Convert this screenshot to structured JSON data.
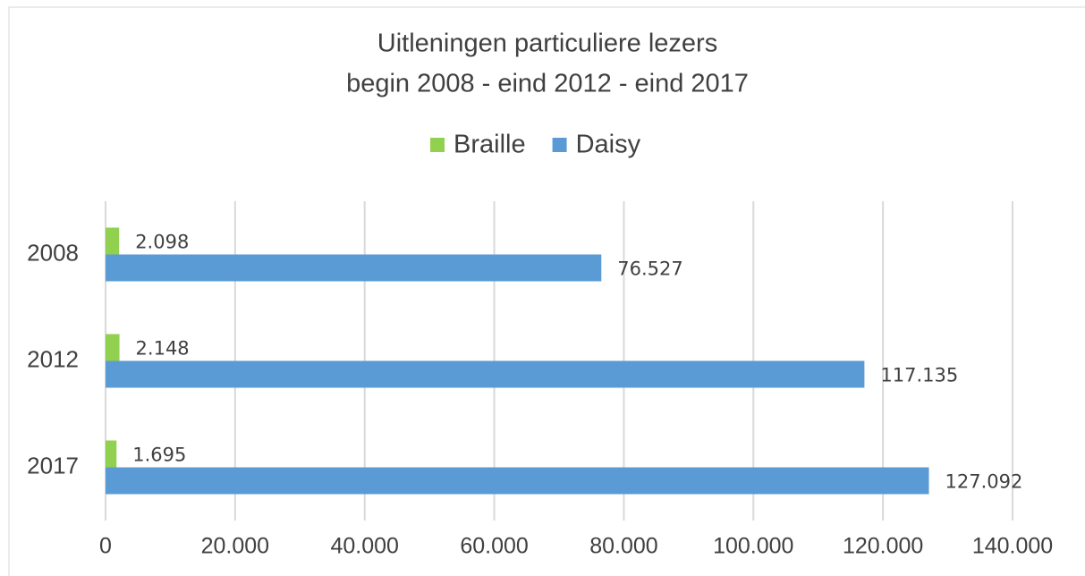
{
  "chart_data": {
    "type": "hbar",
    "title": "Uitleningen particuliere lezers",
    "subtitle": "begin 2008 - eind 2012 - eind 2017",
    "categories": [
      "2008",
      "2012",
      "2017"
    ],
    "series": [
      {
        "name": "Braille",
        "color": "#92d050",
        "values": [
          2098,
          2148,
          1695
        ],
        "value_labels": [
          "2.098",
          "2.148",
          "1.695"
        ]
      },
      {
        "name": "Daisy",
        "color": "#5b9bd5",
        "values": [
          76527,
          117135,
          127092
        ],
        "value_labels": [
          "76.527",
          "117.135",
          "127.092"
        ]
      }
    ],
    "xlim": [
      0,
      140000
    ],
    "xticks": [
      0,
      {
        "value": 20000,
        "label": "20.000"
      },
      {
        "value": 40000,
        "label": "40.000"
      },
      {
        "value": 60000,
        "label": "60.000"
      },
      {
        "value": 80000,
        "label": "80.000"
      },
      {
        "value": 100000,
        "label": "100.000"
      },
      {
        "value": 120000,
        "label": "120.000"
      },
      {
        "value": 140000,
        "label": "140.000"
      }
    ],
    "grid": true,
    "legend": "top"
  }
}
